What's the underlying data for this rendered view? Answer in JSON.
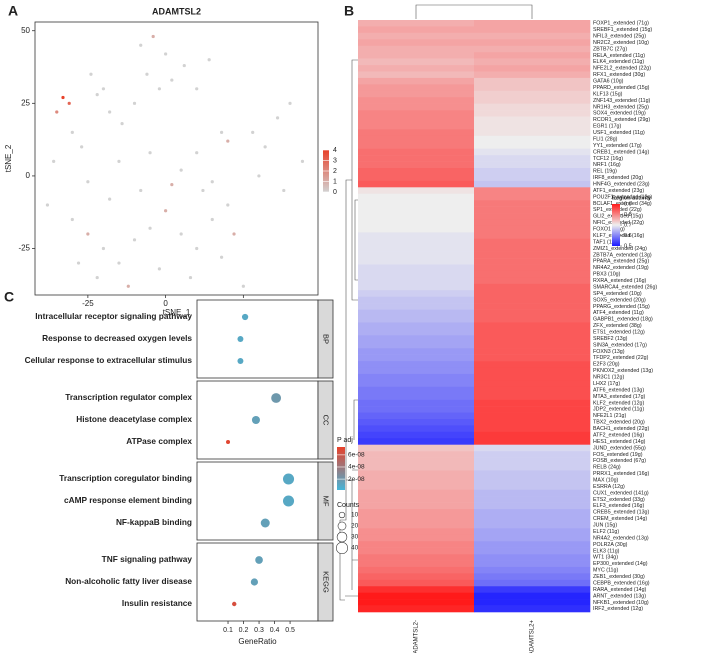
{
  "chart_data": [
    {
      "panel_label": "A",
      "type": "scatter",
      "title": "ADAMTSL2",
      "x_label": "tSNE_1",
      "y_label": "tSNE_2",
      "x": [
        -30,
        -25,
        -20,
        -15,
        -10,
        -5,
        0,
        5,
        10,
        15,
        20,
        -28,
        -22,
        -12,
        -2,
        8,
        18,
        -18,
        -8,
        2,
        12,
        -25,
        -15,
        -5,
        5,
        -33,
        -31,
        -35,
        -30,
        -27,
        -22,
        -18,
        -14,
        -24,
        -20,
        -10,
        -8,
        -4,
        0,
        -6,
        -2,
        2,
        6,
        10,
        14,
        20,
        28,
        32,
        36,
        40,
        44,
        30,
        38,
        25,
        22,
        -38,
        -36,
        15,
        18,
        10
      ],
      "y": [
        -15,
        -20,
        -25,
        -30,
        -22,
        -18,
        -12,
        -20,
        -25,
        -15,
        -10,
        -30,
        -35,
        -38,
        -32,
        -35,
        -28,
        -8,
        -5,
        -3,
        -5,
        -2,
        5,
        8,
        2,
        27,
        25,
        22,
        15,
        10,
        28,
        22,
        18,
        35,
        30,
        25,
        45,
        48,
        42,
        35,
        30,
        33,
        38,
        30,
        40,
        12,
        15,
        10,
        20,
        25,
        5,
        0,
        -5,
        -38,
        -20,
        -10,
        5,
        -2,
        15,
        8
      ],
      "values": [
        0,
        1,
        0,
        0,
        0,
        0,
        1,
        0,
        0,
        0,
        0,
        0,
        0,
        1,
        0,
        0,
        0,
        0,
        0,
        1,
        0,
        0,
        0,
        0,
        0,
        4,
        3,
        2,
        0,
        0,
        0,
        0,
        0,
        0,
        0,
        0,
        0,
        1,
        0,
        0,
        0,
        0,
        0,
        0,
        0,
        1,
        0,
        0,
        0,
        0,
        0,
        0,
        0,
        0,
        1,
        0,
        0,
        0,
        0,
        0
      ],
      "xlim": [
        -42,
        49
      ],
      "ylim": [
        -41,
        53
      ],
      "xticks": [
        -25,
        0,
        25
      ],
      "yticks": [
        -25,
        0,
        25,
        50
      ],
      "color_lim": [
        0,
        4
      ],
      "color_ticks": [
        0,
        1,
        2,
        3,
        4
      ],
      "low_color": "#d2d2d2",
      "high_color": "#e8412a"
    },
    {
      "panel_label": "B",
      "type": "heatmap",
      "legend_title": "Region activity",
      "categories": [
        "FOXP1_extended (71g)",
        "SREBF1_extended (15g)",
        "NFIL3_extended (25g)",
        "NR2C2_extended (10g)",
        "ZBTB7C (27g)",
        "RELA_extended (11g)",
        "ELK4_extended (11g)",
        "NFE2L2_extended (22g)",
        "RFX1_extended (30g)",
        "GATA6 (10g)",
        "PPARD_extended (15g)",
        "KLF13 (15g)",
        "ZNF143_extended (11g)",
        "NR1H3_extended (25g)",
        "SOX4_extended (19g)",
        "RCOR1_extended (29g)",
        "EGR1 (17g)",
        "USF1_extended (11g)",
        "FLI1 (28g)",
        "YY1_extended (17g)",
        "CREB1_extended (14g)",
        "TCF12 (16g)",
        "NRF1 (16g)",
        "REL (19g)",
        "IRF8_extended (20g)",
        "HNF4G_extended (23g)",
        "ATF1_extended (23g)",
        "POU2F1_extended (12g)",
        "BCLAF1_extended (34g)",
        "SP1_extended (22g)",
        "GLI2_extended (15g)",
        "NFIC_extended (22g)",
        "FOXO1 (24g)",
        "KLF7_extended (16g)",
        "TAF1 (11g)",
        "ZMIZ1_extended (24g)",
        "ZBTB7A_extended (13g)",
        "PPARA_extended (25g)",
        "NR4A2_extended (19g)",
        "PBX3 (10g)",
        "RXRA_extended (16g)",
        "SMARCA4_extended (26g)",
        "SP4_extended (10g)",
        "SOX5_extended (20g)",
        "PPARG_extended (15g)",
        "ATF4_extended (11g)",
        "GABPB1_extended (18g)",
        "ZFX_extended (38g)",
        "ETS1_extended (12g)",
        "SREBF2 (13g)",
        "SIN3A_extended (17g)",
        "FOXN3 (13g)",
        "TFDP2_extended (22g)",
        "E2F3 (20g)",
        "PKNOX2_extended (13g)",
        "NR3C1 (12g)",
        "LHX2 (17g)",
        "ATF6_extended (13g)",
        "MTA3_extended (17g)",
        "KLF2_extended (12g)",
        "JDP2_extended (11g)",
        "NFE2L1 (21g)",
        "TBX2_extended (20g)",
        "BACH1_extended (22g)",
        "ATF2_extended (16g)",
        "HES1_extended (14g)",
        "JUND_extended (55g)",
        "FOS_extended (19g)",
        "FOSB_extended (67g)",
        "RELB (24g)",
        "PRRX1_extended (16g)",
        "MAX (10g)",
        "ESRRA (12g)",
        "CUX1_extended (141g)",
        "ETS2_extended (33g)",
        "ELF3_extended (16g)",
        "CREB5_extended (13g)",
        "CREM_extended (14g)",
        "JUN (15g)",
        "ELF2 (11g)",
        "NR4A2_extended (13g)",
        "POLR2A (30g)",
        "ELK3 (11g)",
        "WT1 (34g)",
        "EP300_extended (14g)",
        "MYC (11g)",
        "ZEB1_extended (30g)",
        "CEBPB_extended (16g)",
        "RARA_extended (14g)",
        "ARNT_extended (13g)",
        "NFKB1_extended (10g)",
        "IRF2_extended (12g)"
      ],
      "series": [
        {
          "name": "ADAMTSL2-",
          "values": [
            0.76,
            0.77,
            0.76,
            0.77,
            0.76,
            0.76,
            0.75,
            0.76,
            0.75,
            0.77,
            0.78,
            0.78,
            0.79,
            0.79,
            0.8,
            0.8,
            0.8,
            0.81,
            0.81,
            0.81,
            0.82,
            0.82,
            0.82,
            0.83,
            0.83,
            0.84,
            0.71,
            0.7,
            0.7,
            0.7,
            0.7,
            0.7,
            0.7,
            0.69,
            0.69,
            0.69,
            0.69,
            0.69,
            0.68,
            0.68,
            0.68,
            0.68,
            0.67,
            0.66,
            0.66,
            0.65,
            0.65,
            0.64,
            0.64,
            0.63,
            0.63,
            0.62,
            0.62,
            0.61,
            0.61,
            0.6,
            0.6,
            0.59,
            0.59,
            0.58,
            0.58,
            0.57,
            0.56,
            0.55,
            0.54,
            0.53,
            0.74,
            0.75,
            0.75,
            0.75,
            0.76,
            0.76,
            0.76,
            0.77,
            0.77,
            0.77,
            0.78,
            0.78,
            0.78,
            0.79,
            0.79,
            0.8,
            0.8,
            0.81,
            0.81,
            0.82,
            0.83,
            0.84,
            0.88,
            0.9,
            0.9,
            0.89
          ]
        },
        {
          "name": "ADAMTSL2+",
          "values": [
            0.77,
            0.77,
            0.76,
            0.77,
            0.76,
            0.77,
            0.76,
            0.77,
            0.76,
            0.74,
            0.74,
            0.73,
            0.73,
            0.72,
            0.72,
            0.71,
            0.71,
            0.71,
            0.7,
            0.7,
            0.69,
            0.68,
            0.68,
            0.67,
            0.67,
            0.66,
            0.8,
            0.8,
            0.81,
            0.81,
            0.81,
            0.81,
            0.81,
            0.81,
            0.82,
            0.82,
            0.82,
            0.82,
            0.82,
            0.82,
            0.82,
            0.83,
            0.83,
            0.83,
            0.83,
            0.83,
            0.83,
            0.84,
            0.84,
            0.84,
            0.84,
            0.84,
            0.84,
            0.85,
            0.85,
            0.85,
            0.85,
            0.85,
            0.85,
            0.86,
            0.86,
            0.86,
            0.86,
            0.86,
            0.87,
            0.87,
            0.68,
            0.67,
            0.67,
            0.67,
            0.66,
            0.66,
            0.66,
            0.65,
            0.65,
            0.65,
            0.64,
            0.64,
            0.64,
            0.63,
            0.63,
            0.62,
            0.62,
            0.61,
            0.61,
            0.6,
            0.59,
            0.58,
            0.53,
            0.51,
            0.51,
            0.52
          ]
        }
      ],
      "color_lim": [
        0.5,
        0.9
      ],
      "color_ticks": [
        0.5,
        0.6,
        0.7,
        0.8,
        0.9
      ],
      "low_color": "#1a1aff",
      "mid_color": "#eeeeee",
      "high_color": "#ff1a1a"
    },
    {
      "panel_label": "C",
      "type": "dot",
      "x_label": "GeneRatio",
      "facets": [
        {
          "name": "BP",
          "terms": [
            "Intracellular receptor signaling pathway",
            "Response to decreased oxygen levels",
            "Cellular response to extracellular stimulus"
          ],
          "values": [
            0.21,
            0.18,
            0.18
          ],
          "counts": [
            12,
            11,
            11
          ],
          "padj": [
            1e-08,
            1e-08,
            1e-08
          ]
        },
        {
          "name": "CC",
          "terms": [
            "Transcription regulator complex",
            "Histone deacetylase complex",
            "ATPase complex"
          ],
          "values": [
            0.41,
            0.28,
            0.1
          ],
          "counts": [
            30,
            20,
            5
          ],
          "padj": [
            2e-08,
            1.5e-08,
            7e-08
          ]
        },
        {
          "name": "MF",
          "terms": [
            "Transcription coregulator binding",
            "cAMP response element binding",
            "NF-kappaB binding"
          ],
          "values": [
            0.49,
            0.49,
            0.34
          ],
          "counts": [
            38,
            38,
            25
          ],
          "padj": [
            1e-08,
            1e-08,
            1.5e-08
          ]
        },
        {
          "name": "KEGG",
          "terms": [
            "TNF signaling pathway",
            "Non-alcoholic fatty liver disease",
            "Insulin resistance"
          ],
          "values": [
            0.3,
            0.27,
            0.14
          ],
          "counts": [
            18,
            16,
            6
          ],
          "padj": [
            1.5e-08,
            1.5e-08,
            6.5e-08
          ]
        }
      ],
      "xlim": [
        -0.1,
        0.68
      ],
      "xticks": [
        0.1,
        0.2,
        0.3,
        0.4,
        0.5
      ],
      "color_title": "P adj",
      "color_lim": [
        2e-09,
        7.3e-08
      ],
      "color_ticks": [
        {
          "value": 2e-08,
          "label": "2e-08"
        },
        {
          "value": 4e-08,
          "label": "4e-08"
        },
        {
          "value": 6e-08,
          "label": "6e-08"
        }
      ],
      "size_title": "Counts",
      "size_ticks": [
        10,
        20,
        30,
        40
      ],
      "low_color": "#45b5d8",
      "high_color": "#e8412a"
    }
  ]
}
